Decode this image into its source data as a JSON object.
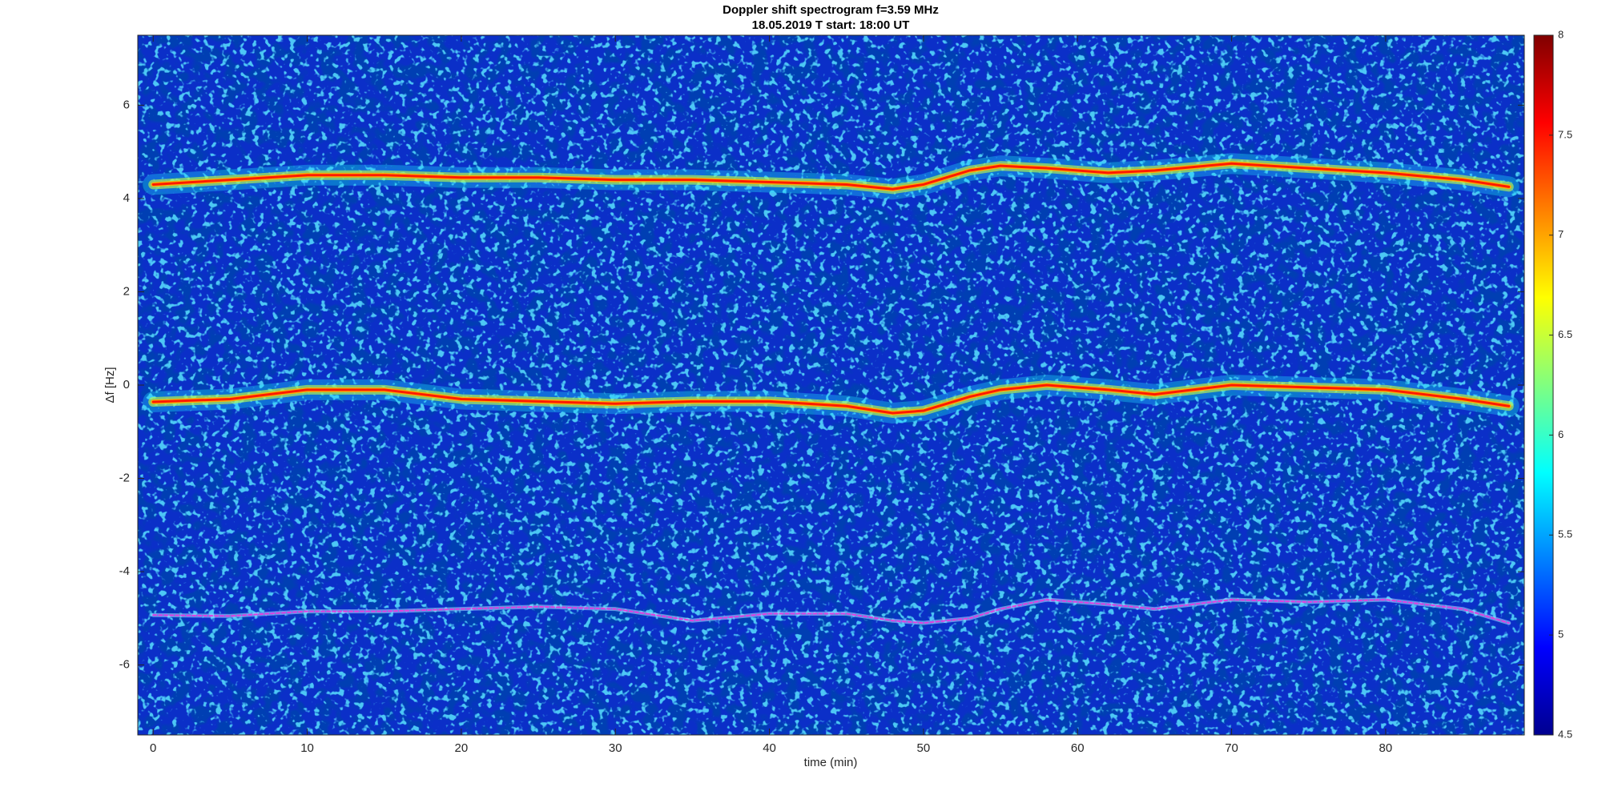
{
  "chart_data": {
    "type": "spectrogram",
    "title": "Doppler shift spectrogram f=3.59 MHz",
    "subtitle": "18.05.2019   T start: 18:00 UT",
    "x_label": "time (min)",
    "y_label": "Δf [Hz]",
    "xlim": [
      -1,
      89
    ],
    "ylim": [
      -7.5,
      7.5
    ],
    "xticks": [
      0,
      10,
      20,
      30,
      40,
      50,
      60,
      70,
      80
    ],
    "yticks": [
      -6,
      -4,
      -2,
      0,
      2,
      4,
      6
    ],
    "colormap": "jet",
    "clim": [
      4.5,
      8
    ],
    "cticks": [
      4.5,
      5,
      5.5,
      6,
      6.5,
      7,
      7.5,
      8
    ],
    "x": [
      0,
      5,
      10,
      15,
      20,
      25,
      30,
      35,
      40,
      45,
      48,
      50,
      53,
      55,
      58,
      62,
      65,
      70,
      75,
      80,
      85,
      88
    ],
    "series": [
      {
        "color": "#ff1a00",
        "values": [
          4.3,
          4.4,
          4.5,
          4.5,
          4.45,
          4.45,
          4.4,
          4.4,
          4.35,
          4.3,
          4.2,
          4.3,
          4.6,
          4.7,
          4.65,
          4.55,
          4.6,
          4.75,
          4.65,
          4.55,
          4.4,
          4.25
        ]
      },
      {
        "color": "#ff1a00",
        "values": [
          -0.36,
          -0.3,
          -0.1,
          -0.1,
          -0.3,
          -0.35,
          -0.4,
          -0.35,
          -0.35,
          -0.45,
          -0.6,
          -0.55,
          -0.25,
          -0.1,
          0,
          -0.1,
          -0.2,
          0,
          -0.05,
          -0.1,
          -0.3,
          -0.45
        ]
      },
      {
        "color": "#e040e0",
        "values": [
          -4.93,
          -4.95,
          -4.85,
          -4.85,
          -4.8,
          -4.75,
          -4.8,
          -5.05,
          -4.9,
          -4.9,
          -5.05,
          -5.1,
          -5.0,
          -4.8,
          -4.6,
          -4.7,
          -4.8,
          -4.6,
          -4.65,
          -4.6,
          -4.8,
          -5.1
        ]
      }
    ]
  }
}
